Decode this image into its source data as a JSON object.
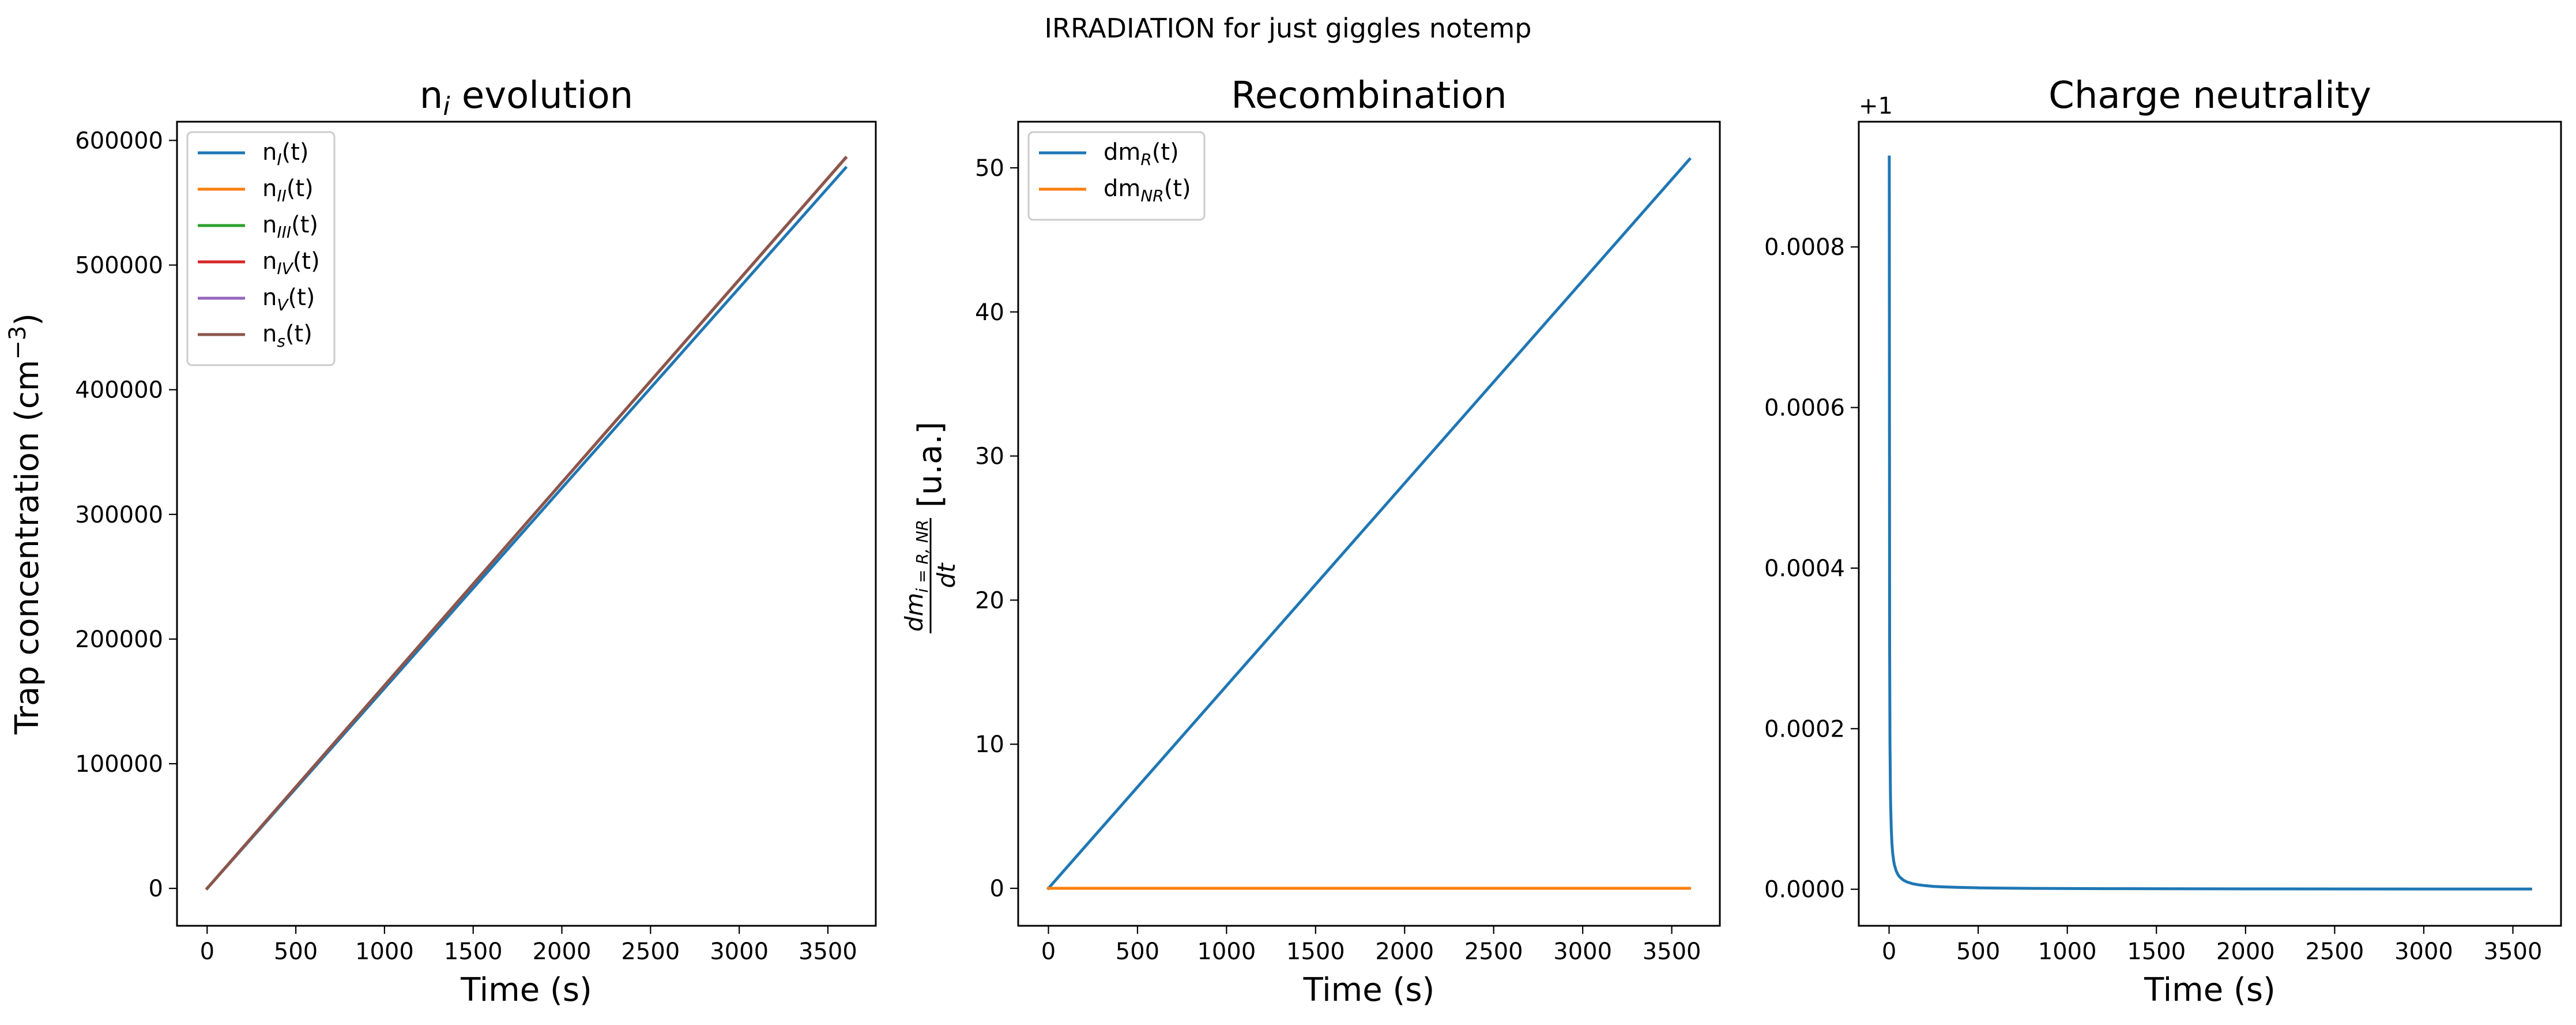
{
  "figure": {
    "suptitle": "IRRADIATION for just giggles notemp"
  },
  "chart_data": [
    {
      "type": "line",
      "title": "n_i evolution",
      "title_parts": {
        "base": "n",
        "sub": "i",
        "rest": " evolution"
      },
      "xlabel": "Time (s)",
      "ylabel": "Trap concentration (cm⁻³)",
      "ylabel_parts": {
        "base": "Trap concentration (cm",
        "sup": "−3",
        "rest": ")"
      },
      "xlim": [
        -170,
        3770
      ],
      "ylim": [
        -30000,
        615000
      ],
      "xticks": [
        0,
        500,
        1000,
        1500,
        2000,
        2500,
        3000,
        3500
      ],
      "xtick_labels": [
        "0",
        "500",
        "1000",
        "1500",
        "2000",
        "2500",
        "3000",
        "3500"
      ],
      "yticks": [
        0,
        100000,
        200000,
        300000,
        400000,
        500000,
        600000
      ],
      "ytick_labels": [
        "0",
        "100000",
        "200000",
        "300000",
        "400000",
        "500000",
        "600000"
      ],
      "legend_position": "upper left",
      "grid": false,
      "series": [
        {
          "name": "n_I(t)",
          "label_base": "n",
          "label_sub": "I",
          "label_rest": "(t)",
          "color": "#1f77b4",
          "x": [
            0,
            3600
          ],
          "y": [
            0,
            578000
          ]
        },
        {
          "name": "n_II(t)",
          "label_base": "n",
          "label_sub": "II",
          "label_rest": "(t)",
          "color": "#ff7f0e",
          "x": [
            0,
            3600
          ],
          "y": [
            0,
            586000
          ]
        },
        {
          "name": "n_III(t)",
          "label_base": "n",
          "label_sub": "III",
          "label_rest": "(t)",
          "color": "#2ca02c",
          "x": [
            0,
            3600
          ],
          "y": [
            0,
            586000
          ]
        },
        {
          "name": "n_IV(t)",
          "label_base": "n",
          "label_sub": "IV",
          "label_rest": "(t)",
          "color": "#d62728",
          "x": [
            0,
            3600
          ],
          "y": [
            0,
            586000
          ]
        },
        {
          "name": "n_V(t)",
          "label_base": "n",
          "label_sub": "V",
          "label_rest": "(t)",
          "color": "#9467bd",
          "x": [
            0,
            3600
          ],
          "y": [
            0,
            586000
          ]
        },
        {
          "name": "n_s(t)",
          "label_base": "n",
          "label_sub": "s",
          "label_rest": "(t)",
          "color": "#8c564b",
          "x": [
            0,
            3600
          ],
          "y": [
            0,
            586000
          ]
        }
      ]
    },
    {
      "type": "line",
      "title": "Recombination",
      "xlabel": "Time (s)",
      "ylabel": "dm_{i=R,NR}/dt [u.a.]",
      "ylabel_parts": {
        "num": "dm",
        "num_sub": "i = R, NR",
        "den": "dt",
        "unit": "[u.a.]"
      },
      "xlim": [
        -170,
        3770
      ],
      "ylim": [
        -2.6,
        53.2
      ],
      "xticks": [
        0,
        500,
        1000,
        1500,
        2000,
        2500,
        3000,
        3500
      ],
      "xtick_labels": [
        "0",
        "500",
        "1000",
        "1500",
        "2000",
        "2500",
        "3000",
        "3500"
      ],
      "yticks": [
        0,
        10,
        20,
        30,
        40,
        50
      ],
      "ytick_labels": [
        "0",
        "10",
        "20",
        "30",
        "40",
        "50"
      ],
      "legend_position": "upper left",
      "grid": false,
      "series": [
        {
          "name": "dm_R(t)",
          "label_base": "dm",
          "label_sub": "R",
          "label_rest": "(t)",
          "color": "#1f77b4",
          "x": [
            0,
            3600
          ],
          "y": [
            0,
            50.6
          ]
        },
        {
          "name": "dm_NR(t)",
          "label_base": "dm",
          "label_sub": "NR",
          "label_rest": "(t)",
          "color": "#ff7f0e",
          "x": [
            0,
            3600
          ],
          "y": [
            0,
            0
          ]
        }
      ]
    },
    {
      "type": "line",
      "title": "Charge neutrality",
      "xlabel": "Time (s)",
      "ylabel": "",
      "offset_text": "+1",
      "xlim": [
        -170,
        3770
      ],
      "ylim": [
        -4.55e-05,
        0.000956
      ],
      "xticks": [
        0,
        500,
        1000,
        1500,
        2000,
        2500,
        3000,
        3500
      ],
      "xtick_labels": [
        "0",
        "500",
        "1000",
        "1500",
        "2000",
        "2500",
        "3000",
        "3500"
      ],
      "yticks": [
        0,
        0.0002,
        0.0004,
        0.0006,
        0.0008
      ],
      "ytick_labels": [
        "0.0000",
        "0.0002",
        "0.0004",
        "0.0006",
        "0.0008"
      ],
      "grid": false,
      "series": [
        {
          "color": "#1f77b4",
          "x": [
            1,
            3,
            5,
            8,
            12,
            16,
            20,
            25,
            30,
            40,
            50,
            60,
            80,
            100,
            130,
            160,
            200,
            250,
            300,
            400,
            500,
            600,
            800,
            1000,
            1200,
            1500,
            2000,
            2500,
            3000,
            3600
          ],
          "y": [
            0.000912,
            0.000304,
            0.000182,
            0.000114,
            7.6e-05,
            5.7e-05,
            4.56e-05,
            3.65e-05,
            3.04e-05,
            2.28e-05,
            1.82e-05,
            1.52e-05,
            1.14e-05,
            9.1e-06,
            7e-06,
            5.7e-06,
            4.6e-06,
            3.6e-06,
            3e-06,
            2.3e-06,
            1.8e-06,
            1.5e-06,
            1.1e-06,
            9e-07,
            8e-07,
            6e-07,
            5e-07,
            4e-07,
            3e-07,
            3e-07
          ]
        }
      ]
    }
  ]
}
